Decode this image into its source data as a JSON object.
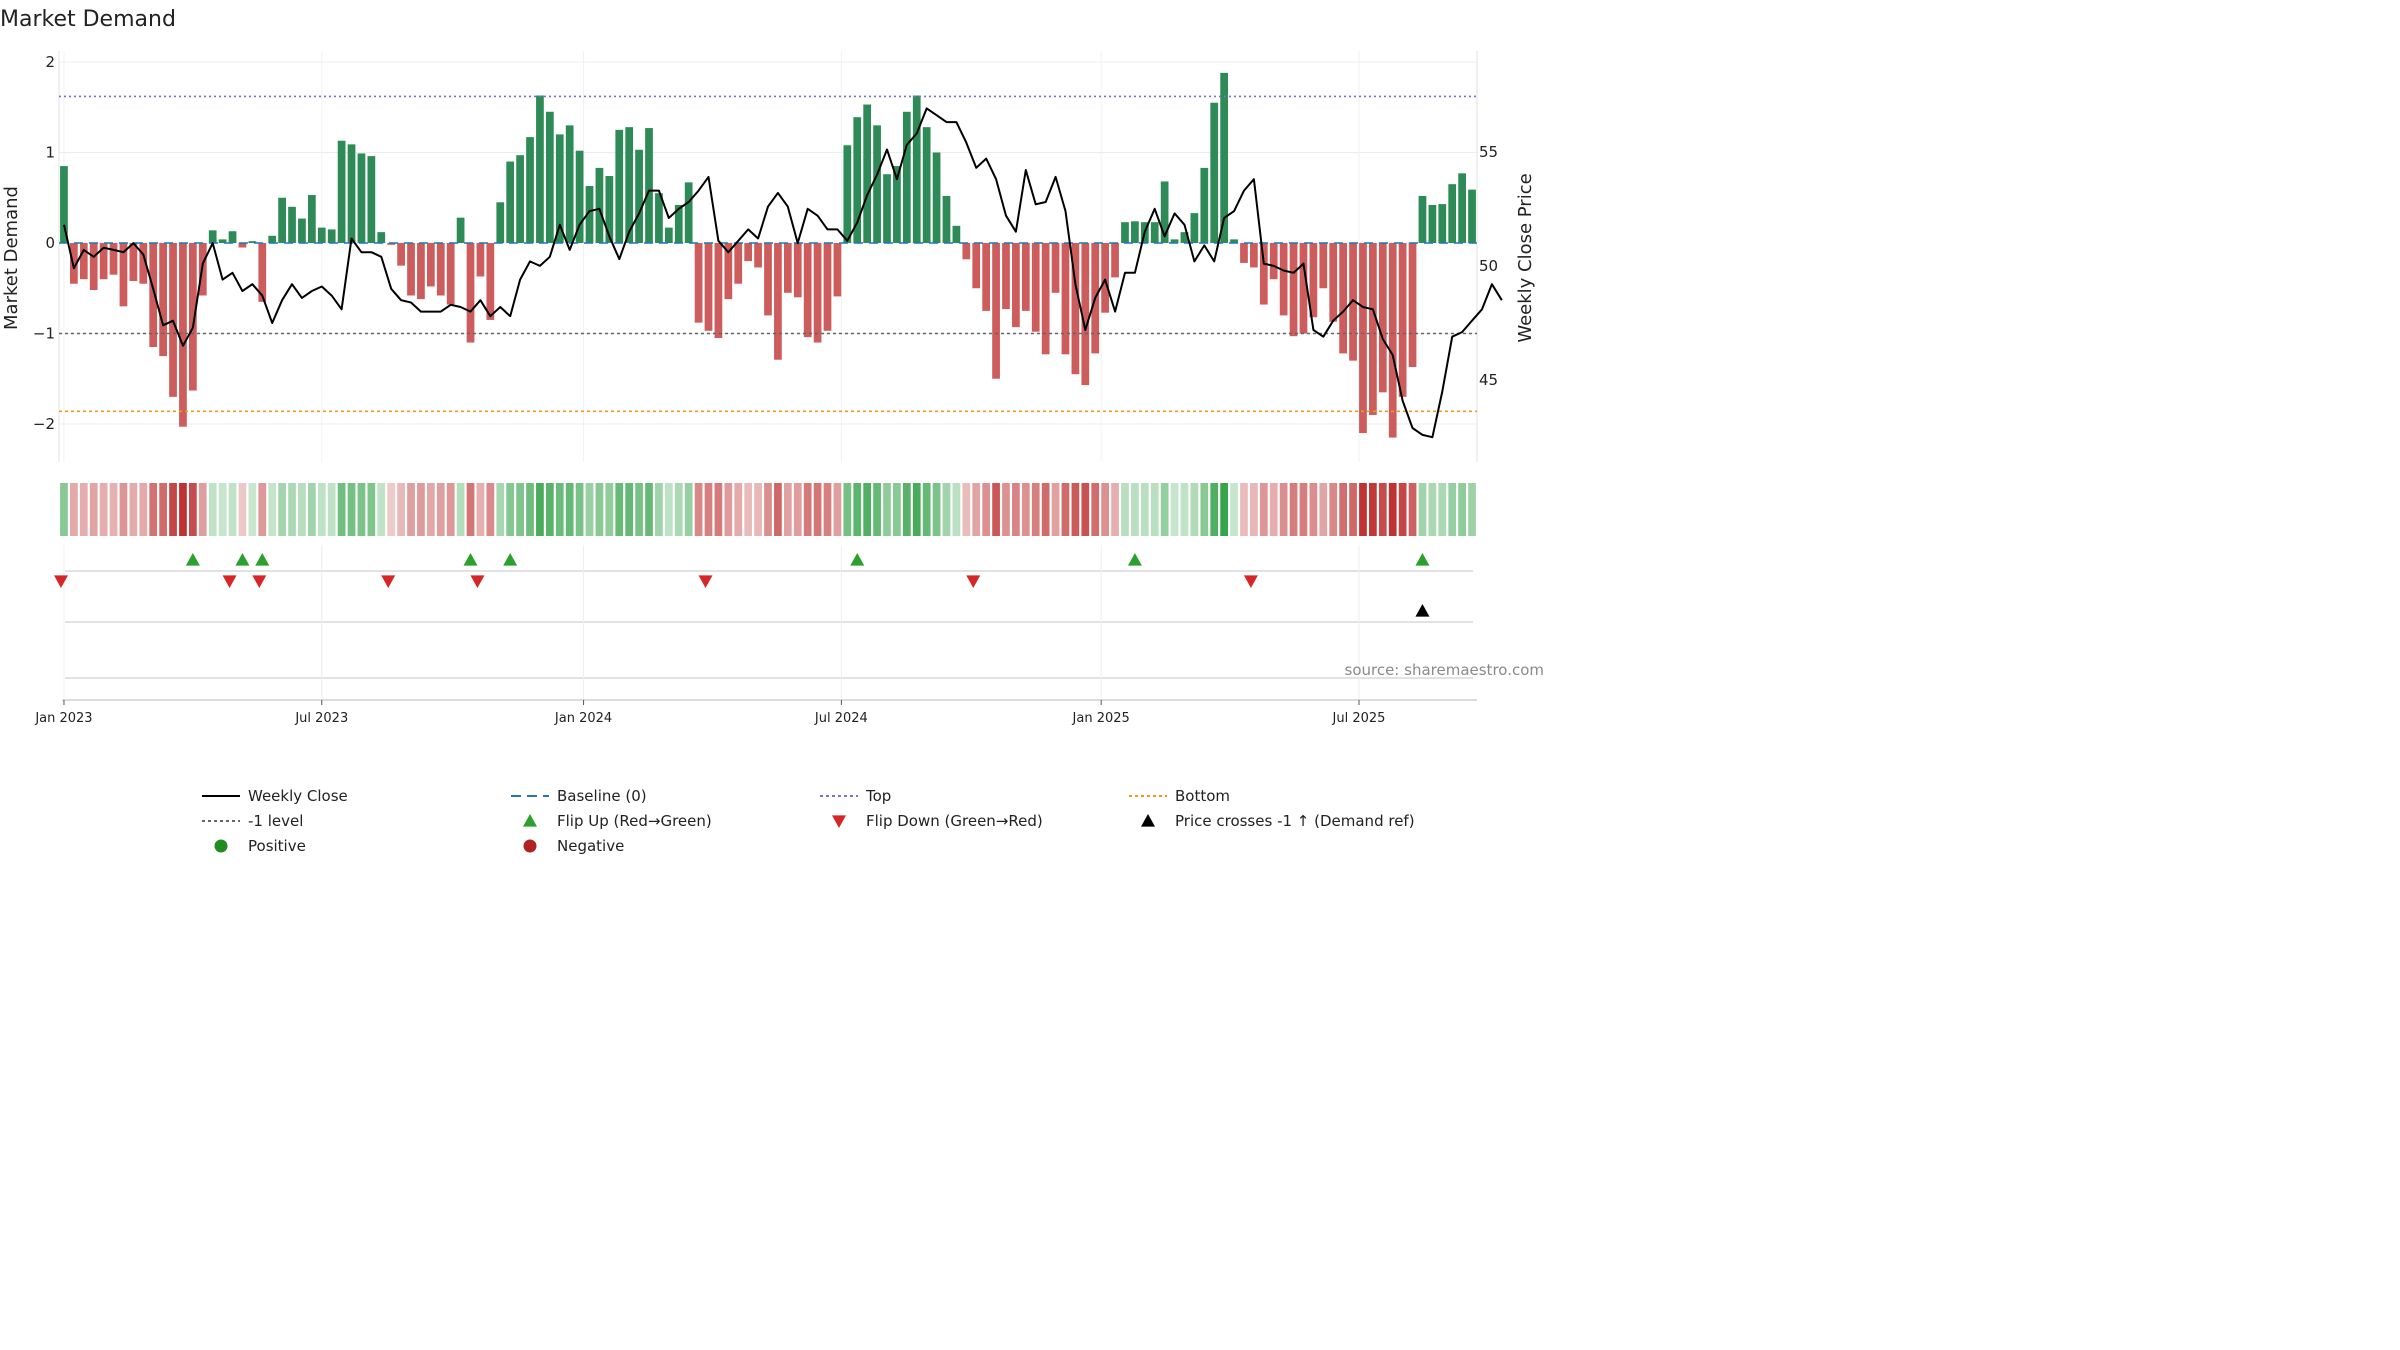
{
  "chart_data": {
    "type": "bar",
    "title": "Market Demand",
    "ylabel": "Market Demand",
    "y2label": "Weekly Close Price",
    "ylim": [
      -2.3,
      2.1
    ],
    "y_ticks": [
      2,
      1,
      0,
      -1,
      -2
    ],
    "y_tick_labels": [
      "2",
      "1",
      "0",
      "−1",
      "−2"
    ],
    "y2lim": [
      40.8,
      58.8
    ],
    "y2_ticks": [
      55,
      50,
      45
    ],
    "y2_tick_labels": [
      "55",
      "50",
      "45"
    ],
    "x_ticks": [
      {
        "label": "Jan 2023",
        "week": 0
      },
      {
        "label": "Jul 2023",
        "week": 26
      },
      {
        "label": "Jan 2024",
        "week": 52.4
      },
      {
        "label": "Jul 2024",
        "week": 78.4
      },
      {
        "label": "Jan 2025",
        "week": 104.6
      },
      {
        "label": "Jul 2025",
        "week": 130.6
      }
    ],
    "reference_lines": {
      "baseline": 0,
      "top": 1.62,
      "bottom": -1.86,
      "minus_one": -1
    },
    "demand": [
      0.85,
      -0.45,
      -0.4,
      -0.52,
      -0.4,
      -0.35,
      -0.7,
      -0.42,
      -0.45,
      -1.15,
      -1.25,
      -1.7,
      -2.03,
      -1.63,
      -0.58,
      0.14,
      0.04,
      0.13,
      -0.05,
      0.02,
      -0.65,
      0.08,
      0.5,
      0.4,
      0.27,
      0.53,
      0.17,
      0.15,
      1.13,
      1.09,
      0.99,
      0.96,
      0.12,
      -0.02,
      -0.25,
      -0.58,
      -0.62,
      -0.48,
      -0.58,
      -0.68,
      0.28,
      -1.1,
      -0.37,
      -0.85,
      0.45,
      0.9,
      0.97,
      1.17,
      1.63,
      1.45,
      1.2,
      1.3,
      1.02,
      0.63,
      0.83,
      0.74,
      1.25,
      1.28,
      1.03,
      1.27,
      0.55,
      0.17,
      0.42,
      0.67,
      -0.88,
      -0.97,
      -1.05,
      -0.62,
      -0.45,
      -0.2,
      -0.27,
      -0.8,
      -1.29,
      -0.55,
      -0.6,
      -1.04,
      -1.1,
      -0.97,
      -0.59,
      1.08,
      1.39,
      1.53,
      1.3,
      0.76,
      0.85,
      1.45,
      1.63,
      1.28,
      1.0,
      0.52,
      0.19,
      -0.18,
      -0.5,
      -0.75,
      -1.5,
      -0.73,
      -0.93,
      -0.75,
      -0.98,
      -1.23,
      -0.55,
      -1.23,
      -1.45,
      -1.57,
      -1.22,
      -0.77,
      -0.38,
      0.23,
      0.24,
      0.23,
      0.23,
      0.68,
      0.04,
      0.12,
      0.33,
      0.83,
      1.55,
      1.88,
      0.04,
      -0.22,
      -0.27,
      -0.68,
      -0.4,
      -0.8,
      -1.03,
      -1.0,
      -0.82,
      -0.5,
      -0.87,
      -1.22,
      -1.3,
      -2.1,
      -1.9,
      -1.65,
      -2.15,
      -1.7,
      -1.37,
      0.52,
      0.42,
      0.43,
      0.65,
      0.77,
      0.59
    ],
    "close": [
      51.8,
      49.9,
      50.7,
      50.4,
      50.8,
      50.7,
      50.6,
      51.0,
      50.5,
      49.0,
      47.4,
      47.6,
      46.5,
      47.3,
      50.1,
      51.0,
      49.4,
      49.7,
      48.9,
      49.2,
      48.7,
      47.5,
      48.5,
      49.2,
      48.6,
      48.9,
      49.1,
      48.7,
      48.1,
      51.2,
      50.6,
      50.6,
      50.4,
      49.0,
      48.5,
      48.4,
      48.0,
      48.0,
      48.0,
      48.3,
      48.2,
      48.0,
      48.5,
      47.8,
      48.2,
      47.8,
      49.4,
      50.2,
      50.0,
      50.4,
      51.8,
      50.7,
      51.8,
      52.4,
      52.5,
      51.3,
      50.3,
      51.5,
      52.3,
      53.3,
      53.3,
      52.1,
      52.5,
      52.8,
      53.3,
      53.9,
      51.1,
      50.6,
      51.1,
      51.6,
      51.2,
      52.6,
      53.2,
      52.6,
      51.0,
      52.5,
      52.2,
      51.6,
      51.6,
      51.1,
      51.9,
      53.1,
      54.0,
      55.1,
      53.8,
      55.3,
      55.8,
      56.9,
      56.6,
      56.3,
      56.3,
      55.4,
      54.3,
      54.7,
      53.8,
      52.2,
      51.5,
      54.2,
      52.7,
      52.8,
      53.9,
      52.4,
      49.2,
      47.2,
      48.6,
      49.4,
      48.0,
      49.7,
      49.7,
      51.5,
      52.5,
      51.3,
      52.3,
      51.8,
      50.2,
      50.9,
      50.2,
      52.1,
      52.4,
      53.3,
      53.8,
      50.1,
      50.0,
      49.8,
      49.7,
      50.1,
      47.2,
      46.9,
      47.6,
      48.0,
      48.5,
      48.2,
      48.1,
      46.8,
      46.1,
      44.1,
      42.9,
      42.6,
      42.5,
      44.5,
      46.9,
      47.1,
      47.6,
      48.1,
      49.2,
      48.5
    ],
    "flip_up_weeks": [
      13,
      18,
      20,
      41,
      45,
      80,
      108,
      137
    ],
    "flip_down_weeks": [
      -0.3,
      16.7,
      19.7,
      32.7,
      41.7,
      64.7,
      91.7,
      119.7
    ],
    "price_cross_weeks": [
      137
    ],
    "source_text": "source: sharemaestro.com",
    "legend": [
      {
        "label": "Weekly Close",
        "marker": "solid-line",
        "color": "#000000"
      },
      {
        "label": "Baseline (0)",
        "marker": "dash-line",
        "color": "#1f77b4"
      },
      {
        "label": "Top",
        "marker": "dot-line",
        "color": "#7b6fd6"
      },
      {
        "label": "Bottom",
        "marker": "dot-line",
        "color": "#f09820"
      },
      {
        "label": "-1 level",
        "marker": "dot-line",
        "color": "#666666"
      },
      {
        "label": "Flip Up (Red→Green)",
        "marker": "triangle-up",
        "color": "#2ca02c"
      },
      {
        "label": "Flip Down (Green→Red)",
        "marker": "triangle-down",
        "color": "#d62728"
      },
      {
        "label": "Price crosses -1 ↑ (Demand ref)",
        "marker": "triangle-up",
        "color": "#000000"
      },
      {
        "label": "Positive",
        "marker": "circle",
        "color": "#228b22"
      },
      {
        "label": "Negative",
        "marker": "circle",
        "color": "#b22222"
      }
    ],
    "colors": {
      "positive_bar": "#2e8b57",
      "negative_bar": "#cd5c5c",
      "close_line": "#000000"
    }
  }
}
